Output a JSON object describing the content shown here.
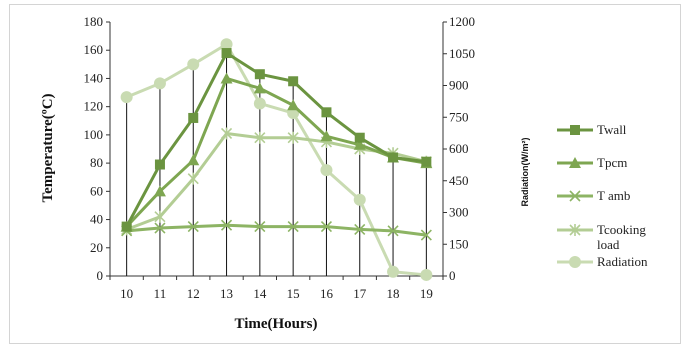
{
  "chart_data": {
    "type": "line",
    "x": [
      10,
      11,
      12,
      13,
      14,
      15,
      16,
      17,
      18,
      19
    ],
    "xlabel": "Time(Hours)",
    "ylabel": "Temperature(ºC)",
    "y2label": "Radiation(W/m²)",
    "ylim": [
      0,
      180
    ],
    "yticks": [
      0,
      20,
      40,
      60,
      80,
      100,
      120,
      140,
      160,
      180
    ],
    "y2lim": [
      0,
      1200
    ],
    "y2ticks": [
      0,
      150,
      300,
      450,
      600,
      750,
      900,
      1050,
      1200
    ],
    "grid": false,
    "drop_lines": true,
    "legend_position": "right",
    "series": [
      {
        "name": "Twall",
        "axis": "left",
        "marker": "square",
        "color": "#6b9440",
        "values": [
          35,
          79,
          112,
          158,
          143,
          138,
          116,
          98,
          84,
          81
        ]
      },
      {
        "name": "Tpcm",
        "axis": "left",
        "marker": "triangle",
        "color": "#7ea651",
        "values": [
          35,
          60,
          82,
          140,
          133,
          121,
          99,
          93,
          84,
          80
        ]
      },
      {
        "name": "T amb",
        "axis": "left",
        "marker": "x",
        "color": "#8db464",
        "values": [
          32,
          34,
          35,
          36,
          35,
          35,
          35,
          33,
          32,
          29
        ]
      },
      {
        "name": "Tcooking load",
        "axis": "left",
        "marker": "asterisk",
        "color": "#b3cd94",
        "values": [
          33,
          42,
          69,
          101,
          98,
          98,
          95,
          90,
          87,
          81
        ]
      },
      {
        "name": "Radiation",
        "axis": "right",
        "marker": "circle",
        "color": "#c9dbb2",
        "values": [
          845,
          910,
          1000,
          1095,
          815,
          770,
          500,
          360,
          20,
          5
        ]
      }
    ]
  }
}
